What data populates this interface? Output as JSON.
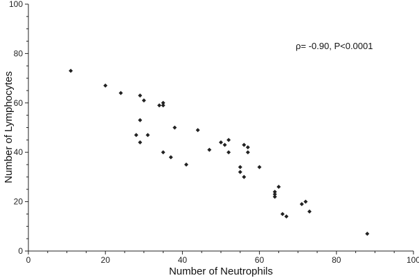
{
  "chart_data": {
    "type": "scatter",
    "title": "",
    "xlabel": "Number of Neutrophils",
    "ylabel": "Number of Lymphocytes",
    "xlim": [
      0,
      100
    ],
    "ylim": [
      0,
      100
    ],
    "xticks": [
      0,
      20,
      40,
      60,
      80,
      100
    ],
    "yticks": [
      0,
      20,
      40,
      60,
      80,
      100
    ],
    "grid": false,
    "legend": "none",
    "annotation": "ρ= -0.90, P<0.0001",
    "marker_color": "#222222",
    "series": [
      {
        "points": [
          [
            11,
            73
          ],
          [
            20,
            67
          ],
          [
            24,
            64
          ],
          [
            28,
            47
          ],
          [
            29,
            63
          ],
          [
            29,
            53
          ],
          [
            29,
            44
          ],
          [
            30,
            61
          ],
          [
            31,
            47
          ],
          [
            34,
            59
          ],
          [
            35,
            60
          ],
          [
            35,
            59
          ],
          [
            35,
            40
          ],
          [
            37,
            38
          ],
          [
            38,
            50
          ],
          [
            41,
            35
          ],
          [
            44,
            49
          ],
          [
            47,
            41
          ],
          [
            50,
            44
          ],
          [
            51,
            43
          ],
          [
            52,
            45
          ],
          [
            52,
            40
          ],
          [
            55,
            34
          ],
          [
            55,
            32
          ],
          [
            56,
            43
          ],
          [
            56,
            30
          ],
          [
            57,
            42
          ],
          [
            57,
            40
          ],
          [
            60,
            34
          ],
          [
            64,
            24
          ],
          [
            64,
            23
          ],
          [
            64,
            22
          ],
          [
            65,
            26
          ],
          [
            66,
            15
          ],
          [
            67,
            14
          ],
          [
            71,
            19
          ],
          [
            72,
            20
          ],
          [
            73,
            16
          ],
          [
            88,
            7
          ]
        ]
      }
    ]
  }
}
